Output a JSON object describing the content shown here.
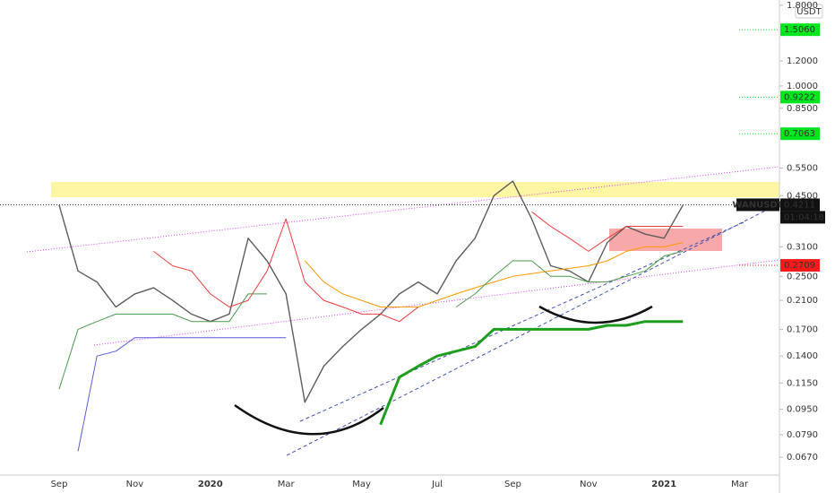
{
  "chart_data": {
    "type": "line",
    "log_scale": true,
    "currency": "USDT",
    "categories": [
      "Sep",
      null,
      null,
      null,
      "Nov",
      null,
      null,
      null,
      "2020",
      null,
      null,
      null,
      "Mar",
      null,
      null,
      null,
      "May",
      null,
      null,
      null,
      "Jul",
      null,
      null,
      null,
      "Sep",
      null,
      null,
      null,
      "Nov",
      null,
      null,
      null,
      "2021",
      null,
      null,
      null,
      "Mar"
    ],
    "series": [
      {
        "name": "WANUSDT",
        "color": "#5d5d5d",
        "width": 1.4,
        "values": [
          0.42,
          0.26,
          0.24,
          0.2,
          0.22,
          0.23,
          0.21,
          0.19,
          0.18,
          0.19,
          0.33,
          0.28,
          0.22,
          0.1,
          0.13,
          0.15,
          0.17,
          0.19,
          0.22,
          0.24,
          0.22,
          0.28,
          0.33,
          0.45,
          0.5,
          0.38,
          0.27,
          0.26,
          0.24,
          0.32,
          0.36,
          0.34,
          0.33,
          0.42,
          null,
          null,
          null
        ]
      },
      {
        "color": "#ff9800",
        "width": 1,
        "values": [
          null,
          null,
          null,
          null,
          null,
          null,
          null,
          null,
          null,
          null,
          null,
          null,
          null,
          0.28,
          0.24,
          0.22,
          0.21,
          0.2,
          0.2,
          0.2,
          0.21,
          0.22,
          0.23,
          0.24,
          0.25,
          0.255,
          0.26,
          0.265,
          0.27,
          0.28,
          0.3,
          0.31,
          0.31,
          0.32,
          null,
          null,
          null
        ]
      },
      {
        "color": "#1e9e1e",
        "width": 3,
        "values": [
          null,
          null,
          null,
          null,
          null,
          null,
          null,
          null,
          null,
          null,
          null,
          null,
          null,
          null,
          null,
          null,
          null,
          0.085,
          0.12,
          0.13,
          0.14,
          0.145,
          0.15,
          0.17,
          0.17,
          0.17,
          0.17,
          0.17,
          0.17,
          0.175,
          0.175,
          0.18,
          0.18,
          0.18,
          null,
          null,
          null
        ]
      },
      {
        "color": "#5b5bd6",
        "width": 1,
        "values": [
          null,
          0.07,
          0.14,
          0.145,
          0.16,
          0.16,
          0.16,
          0.16,
          0.16,
          0.16,
          0.16,
          0.16,
          0.16,
          null,
          null,
          null,
          null,
          null,
          null,
          null,
          null,
          null,
          null,
          null,
          null,
          null,
          null,
          null,
          null,
          null,
          null,
          null,
          null,
          null,
          null,
          null,
          null
        ]
      },
      {
        "color": "#f03c3c",
        "width": 1,
        "values": [
          null,
          null,
          null,
          null,
          null,
          0.3,
          0.27,
          0.26,
          0.22,
          0.2,
          0.21,
          0.26,
          0.38,
          0.24,
          0.21,
          0.2,
          0.19,
          0.19,
          0.18,
          0.2,
          null,
          null,
          null,
          null,
          null,
          0.4,
          0.36,
          0.33,
          0.3,
          0.33,
          0.36,
          0.36,
          0.36,
          0.36,
          null,
          null,
          null
        ]
      },
      {
        "color": "#4a9a4a",
        "width": 1,
        "values": [
          0.11,
          0.17,
          0.18,
          0.19,
          0.19,
          0.19,
          0.19,
          0.18,
          0.18,
          0.18,
          0.22,
          0.22,
          null,
          null,
          null,
          null,
          null,
          null,
          null,
          null,
          null,
          0.2,
          0.22,
          0.25,
          0.28,
          0.28,
          0.25,
          0.25,
          0.24,
          0.24,
          0.25,
          0.26,
          0.29,
          0.3,
          null,
          null,
          null
        ]
      }
    ],
    "ylim": [
      0.062,
      1.87
    ],
    "yticks": [
      {
        "value": 1.8,
        "label": "1.8000"
      },
      {
        "value": 1.2,
        "label": "1.2000"
      },
      {
        "value": 1.0,
        "label": "1.0000"
      },
      {
        "value": 0.85,
        "label": "0.8500"
      },
      {
        "value": 0.55,
        "label": "0.5500"
      },
      {
        "value": 0.45,
        "label": "0.4500"
      },
      {
        "value": 0.31,
        "label": "0.3100"
      },
      {
        "value": 0.25,
        "label": "0.2500"
      },
      {
        "value": 0.21,
        "label": "0.2100"
      },
      {
        "value": 0.17,
        "label": "0.1700"
      },
      {
        "value": 0.14,
        "label": "0.1400"
      },
      {
        "value": 0.115,
        "label": "0.1150"
      },
      {
        "value": 0.095,
        "label": "0.0950"
      },
      {
        "value": 0.079,
        "label": "0.0790"
      },
      {
        "value": 0.067,
        "label": "0.0670"
      }
    ],
    "price_tags": [
      {
        "value": 1.506,
        "label": "1.5060",
        "color": "#00e61e"
      },
      {
        "value": 0.9222,
        "label": "0.9222",
        "color": "#00e61e"
      },
      {
        "value": 0.7063,
        "label": "0.7063",
        "color": "#00e61e"
      },
      {
        "value": 0.2709,
        "label": "0.2709",
        "color": "#ff1a1a"
      }
    ],
    "last_price": {
      "name": "WANUSDT",
      "value": 0.4211,
      "label": "0.4211",
      "countdown": "01:04:18"
    }
  }
}
